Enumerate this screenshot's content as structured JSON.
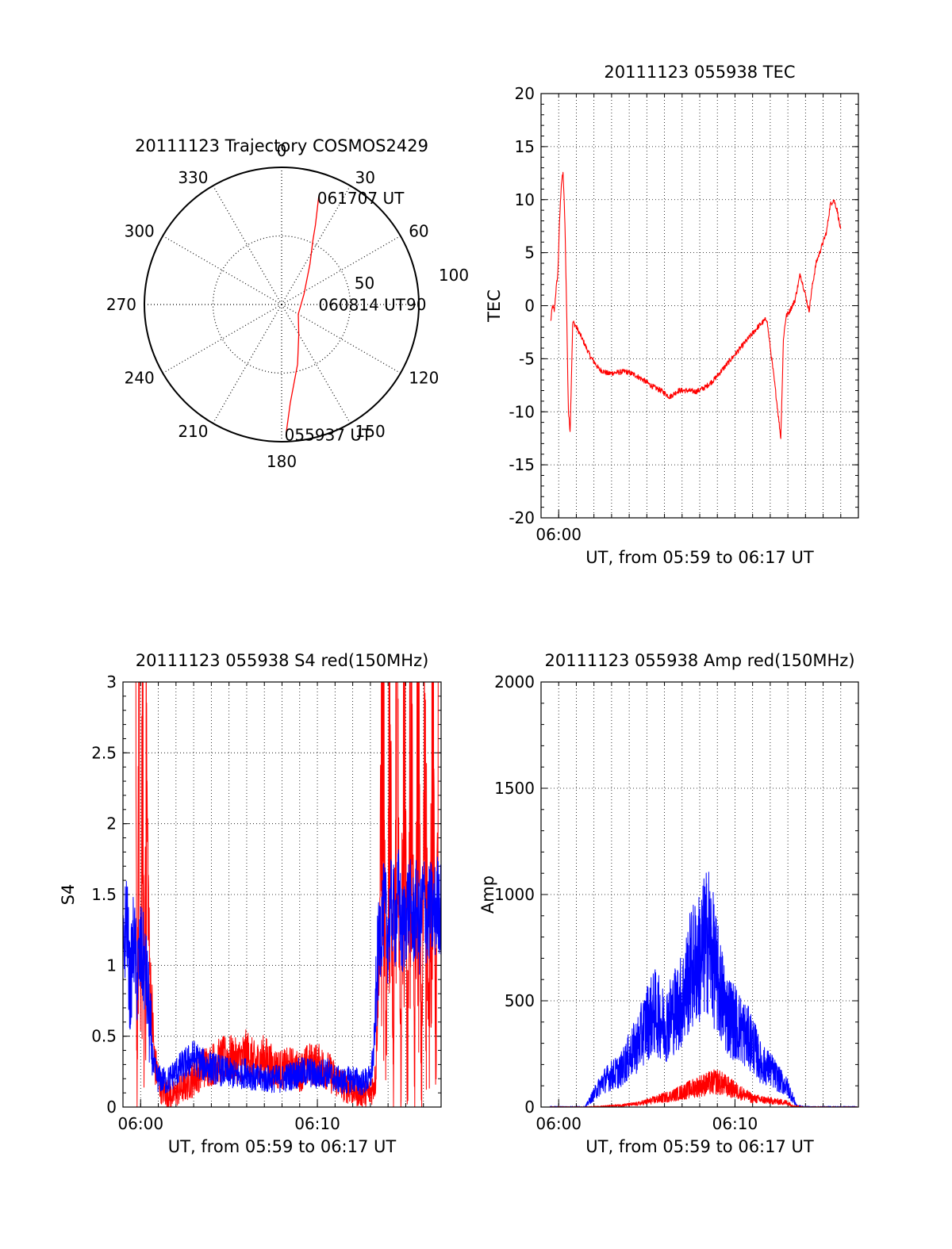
{
  "colors": {
    "red": "#ff0000",
    "blue": "#0000ff",
    "axis": "#000000",
    "grid": "#000000"
  },
  "chart_data": [
    {
      "id": "trajectory",
      "type": "polar",
      "title": "20111123 Trajectory COSMOS2429",
      "angle_labels": [
        "0",
        "30",
        "60",
        "90",
        "120",
        "150",
        "180",
        "210",
        "240",
        "270",
        "300",
        "330"
      ],
      "radius_labels": [
        "50",
        "100"
      ],
      "radius_max": 100,
      "grid": true,
      "series": [
        {
          "color": "red",
          "points": [
            {
              "az": 178,
              "r": 94
            },
            {
              "az": 175,
              "r": 72
            },
            {
              "az": 165,
              "r": 45
            },
            {
              "az": 150,
              "r": 25
            },
            {
              "az": 120,
              "r": 14
            },
            {
              "az": 65,
              "r": 18
            },
            {
              "az": 35,
              "r": 36
            },
            {
              "az": 26,
              "r": 52
            },
            {
              "az": 23,
              "r": 63
            },
            {
              "az": 19,
              "r": 83
            }
          ]
        }
      ],
      "annotations": [
        {
          "text": "061707 UT",
          "az": 19,
          "r": 83
        },
        {
          "text": "060814 UT",
          "az": 88,
          "r": 28
        },
        {
          "text": "055937 UT",
          "az": 178,
          "r": 94
        }
      ]
    },
    {
      "id": "tec",
      "type": "line",
      "title": "20111123 055938 TEC",
      "xlabel": "UT, from 05:59 to 06:17 UT",
      "ylabel": "TEC",
      "xlim": [
        -1.0,
        17.0
      ],
      "ylim": [
        -20,
        20
      ],
      "yticks": [
        "-20",
        "-15",
        "-10",
        "-5",
        "0",
        "5",
        "10",
        "15",
        "20"
      ],
      "xticks": [
        {
          "at": 0,
          "label": "06:00"
        }
      ],
      "grid": true,
      "series": [
        {
          "color": "red",
          "x": [
            -0.45,
            -0.35,
            -0.25,
            -0.15,
            -0.05,
            0.05,
            0.15,
            0.25,
            0.35,
            0.45,
            0.55,
            0.65,
            0.75,
            0.9,
            1.1,
            1.4,
            1.8,
            2.3,
            2.8,
            3.3,
            3.8,
            4.3,
            4.8,
            5.3,
            5.8,
            6.3,
            6.8,
            7.3,
            7.8,
            8.3,
            8.8,
            9.3,
            9.8,
            10.3,
            10.8,
            11.3,
            11.8,
            12.3,
            12.8,
            13.3,
            13.8,
            14.3,
            14.8,
            15.1,
            15.2,
            15.3,
            15.4,
            15.6,
            15.8,
            16.0,
            16.2,
            16.4,
            16.6,
            16.8,
            17.0
          ],
          "y": [
            -1.5,
            0,
            -0.5,
            1.5,
            3,
            8,
            11.5,
            12.5,
            8,
            0,
            -10,
            -11.8,
            -1.5,
            -2,
            -3,
            -4.8,
            -6,
            -6.4,
            -6.3,
            -6.2,
            -6.5,
            -7,
            -7.6,
            -8,
            -8.6,
            -8,
            -8,
            -8.1,
            -7.7,
            -7,
            -6,
            -5,
            -4,
            -3,
            -2,
            -1.2,
            -8,
            -12.5,
            -3,
            -1,
            -0.5,
            0.5,
            3,
            1,
            -0.5,
            2,
            4,
            5,
            6,
            7,
            9.5,
            10,
            9,
            8,
            7
          ],
          "x_fixed": [
            -0.45,
            -0.35,
            -0.25,
            -0.15,
            -0.05,
            0.05,
            0.15,
            0.25,
            0.35,
            0.45,
            0.55,
            0.65,
            0.8,
            1.0,
            1.3,
            1.8,
            2.3,
            2.8,
            3.3,
            3.8,
            4.3,
            4.8,
            5.3,
            5.8,
            6.3,
            6.8,
            7.3,
            7.8,
            8.3,
            8.8,
            9.3,
            9.8,
            10.3,
            10.8,
            11.3,
            11.8,
            12.3,
            12.6,
            12.75,
            12.9,
            13.1,
            13.4,
            13.7,
            14.0,
            14.2,
            14.4,
            14.6,
            14.8,
            15.0,
            15.2,
            15.4,
            15.6,
            15.8,
            15.9,
            16.0
          ]
        }
      ]
    },
    {
      "id": "s4",
      "type": "line",
      "title": "20111123 055938 S4 red(150MHz)",
      "xlabel": "UT, from 05:59 to 06:17 UT",
      "ylabel": "S4",
      "xlim": [
        -1.0,
        17.0
      ],
      "ylim": [
        0,
        3
      ],
      "yticks": [
        "0",
        "0.5",
        "1",
        "1.5",
        "2",
        "2.5",
        "3"
      ],
      "xticks": [
        {
          "at": 0,
          "label": "06:00"
        },
        {
          "at": 10,
          "label": "06:10"
        }
      ],
      "grid": true,
      "series": [
        {
          "color": "red",
          "x": [
            -0.3,
            -0.2,
            -0.1,
            0.0,
            0.1,
            0.2,
            0.3,
            0.5,
            0.8,
            1.2,
            1.8,
            2.5,
            3.0,
            3.5,
            4.0,
            4.5,
            5.0,
            5.5,
            6.0,
            6.5,
            7.0,
            7.5,
            8.0,
            8.5,
            9.0,
            9.5,
            10.0,
            10.5,
            11.0,
            11.5,
            12.0,
            12.5,
            13.0,
            13.3,
            13.5,
            13.7,
            13.9,
            14.1,
            14.3,
            14.5,
            14.7,
            14.9,
            15.1,
            15.3,
            15.5,
            15.7,
            15.9,
            16.1,
            16.3,
            16.5,
            16.7,
            16.9
          ],
          "y": [
            3,
            0.2,
            3,
            0.3,
            3,
            0.4,
            2.6,
            1.0,
            0.3,
            0.12,
            0.08,
            0.15,
            0.2,
            0.28,
            0.3,
            0.33,
            0.35,
            0.32,
            0.38,
            0.3,
            0.35,
            0.28,
            0.26,
            0.28,
            0.25,
            0.3,
            0.3,
            0.27,
            0.2,
            0.15,
            0.12,
            0.1,
            0.1,
            0.2,
            1.2,
            3,
            0.1,
            3,
            0.2,
            3,
            0.1,
            3,
            0.3,
            3,
            0.2,
            3,
            0.1,
            3,
            0.2,
            3,
            0.5,
            3
          ]
        },
        {
          "color": "blue",
          "x": [
            -1.0,
            -0.8,
            -0.6,
            -0.4,
            -0.2,
            0.0,
            0.2,
            0.4,
            0.6,
            0.8,
            1.0,
            1.5,
            2.0,
            2.5,
            3.0,
            3.5,
            4.0,
            4.5,
            5.0,
            5.5,
            6.0,
            6.5,
            7.0,
            7.5,
            8.0,
            8.5,
            9.0,
            9.5,
            10.0,
            10.5,
            11.0,
            11.5,
            12.0,
            12.5,
            13.0,
            13.2,
            13.4,
            13.6,
            13.8,
            14.0,
            14.2,
            14.4,
            14.6,
            14.8,
            15.0,
            15.2,
            15.4,
            15.6,
            15.8,
            16.0,
            16.2,
            16.4,
            16.6,
            16.8,
            17.0
          ],
          "y": [
            1.0,
            1.4,
            0.8,
            1.2,
            0.9,
            1.1,
            1.0,
            0.8,
            0.4,
            0.25,
            0.2,
            0.18,
            0.25,
            0.3,
            0.35,
            0.3,
            0.28,
            0.26,
            0.24,
            0.22,
            0.25,
            0.2,
            0.2,
            0.2,
            0.2,
            0.22,
            0.24,
            0.25,
            0.22,
            0.25,
            0.2,
            0.18,
            0.2,
            0.17,
            0.2,
            0.4,
            1.0,
            1.3,
            1.4,
            1.2,
            1.45,
            1.3,
            1.5,
            1.2,
            1.35,
            1.45,
            1.3,
            1.4,
            1.25,
            1.5,
            1.3,
            1.4,
            1.35,
            1.45,
            1.4
          ]
        }
      ]
    },
    {
      "id": "amp",
      "type": "line",
      "title": "20111123 055938 Amp red(150MHz)",
      "xlabel": "UT, from 05:59 to 06:17 UT",
      "ylabel": "Amp",
      "xlim": [
        -1.0,
        17.0
      ],
      "ylim": [
        0,
        2000
      ],
      "yticks": [
        "0",
        "500",
        "1000",
        "1500",
        "2000"
      ],
      "xticks": [
        {
          "at": 0,
          "label": "06:00"
        },
        {
          "at": 10,
          "label": "06:10"
        }
      ],
      "grid": true,
      "series": [
        {
          "color": "blue",
          "x": [
            -0.5,
            0.5,
            1.5,
            2.0,
            2.5,
            3.0,
            3.5,
            4.0,
            4.5,
            5.0,
            5.5,
            6.0,
            6.5,
            7.0,
            7.5,
            8.0,
            8.5,
            9.0,
            9.5,
            10.0,
            10.5,
            11.0,
            11.5,
            12.0,
            12.5,
            13.0,
            13.3,
            13.5,
            14.0,
            15.0,
            16.0,
            17.0
          ],
          "y": [
            0,
            0,
            0,
            60,
            120,
            150,
            170,
            240,
            300,
            400,
            450,
            380,
            450,
            500,
            650,
            700,
            800,
            600,
            450,
            400,
            350,
            300,
            200,
            180,
            130,
            90,
            40,
            5,
            0,
            0,
            0,
            0
          ]
        },
        {
          "color": "red",
          "x": [
            -0.5,
            1.5,
            2.5,
            3.5,
            4.5,
            5.0,
            5.5,
            6.0,
            6.5,
            7.0,
            7.5,
            8.0,
            8.5,
            9.0,
            9.5,
            10.0,
            10.5,
            11.0,
            11.5,
            12.0,
            12.5,
            13.0,
            13.3,
            14.0,
            17.0
          ],
          "y": [
            0,
            0,
            3,
            8,
            15,
            25,
            35,
            45,
            55,
            70,
            85,
            100,
            110,
            120,
            100,
            80,
            60,
            40,
            35,
            30,
            25,
            20,
            5,
            0,
            0
          ]
        }
      ]
    }
  ]
}
